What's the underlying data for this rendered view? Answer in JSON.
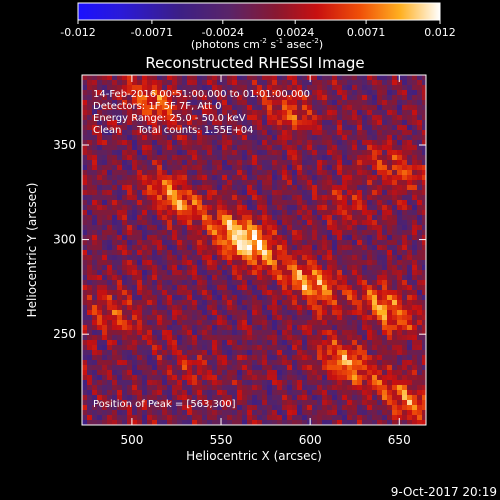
{
  "chart_data": {
    "type": "heatmap",
    "title": "Reconstructed RHESSI Image",
    "xlabel": "Heliocentric X (arcsec)",
    "ylabel": "Heliocentric Y (arcsec)",
    "xlim": [
      472,
      665
    ],
    "ylim": [
      202,
      387
    ],
    "x_ticks": [
      500,
      550,
      600,
      650
    ],
    "y_ticks": [
      250,
      300,
      350
    ],
    "colorbar": {
      "range": [
        -0.012,
        0.012
      ],
      "ticks": [
        "-0.012",
        "-0.0071",
        "-0.0024",
        "0.0024",
        "0.0071",
        "0.012"
      ],
      "tick_values": [
        -0.012,
        -0.0071,
        -0.0024,
        0.0024,
        0.0071,
        0.012
      ],
      "unit_main": "(photons cm",
      "unit_exp1": "-2",
      "unit_mid": " s",
      "unit_exp2": "-1",
      "unit_tail": " asec",
      "unit_exp3": "-2",
      "unit_close": ")"
    },
    "annotations": [
      "14-Feb-2016 00:51:00.000 to 01:01:00.000",
      "Detectors: 1F 5F 7F, Att 0",
      "Energy Range: 25.0 - 50.0 keV",
      "Clean     Total counts: 1.55E+04"
    ],
    "peak_label": "Position of Peak = [563,300]",
    "peak_position": [
      563,
      300
    ],
    "sources": [
      {
        "x": 563,
        "y": 300,
        "amp": 0.012
      },
      {
        "x": 600,
        "y": 277,
        "amp": 0.0085
      },
      {
        "x": 524,
        "y": 322,
        "amp": 0.0075
      },
      {
        "x": 643,
        "y": 263,
        "amp": 0.0075
      },
      {
        "x": 620,
        "y": 235,
        "amp": 0.0075
      },
      {
        "x": 655,
        "y": 215,
        "amp": 0.0065
      },
      {
        "x": 512,
        "y": 372,
        "amp": 0.0065
      },
      {
        "x": 588,
        "y": 368,
        "amp": 0.005
      },
      {
        "x": 490,
        "y": 262,
        "amp": 0.0045
      },
      {
        "x": 648,
        "y": 337,
        "amp": 0.005
      },
      {
        "x": 535,
        "y": 230,
        "amp": 0.003
      },
      {
        "x": 620,
        "y": 320,
        "amp": 0.0035
      }
    ],
    "colormap": "red-temperature (blue-purple-red-orange-yellow-white)"
  },
  "footer": {
    "timestamp": "9-Oct-2017 20:19"
  }
}
